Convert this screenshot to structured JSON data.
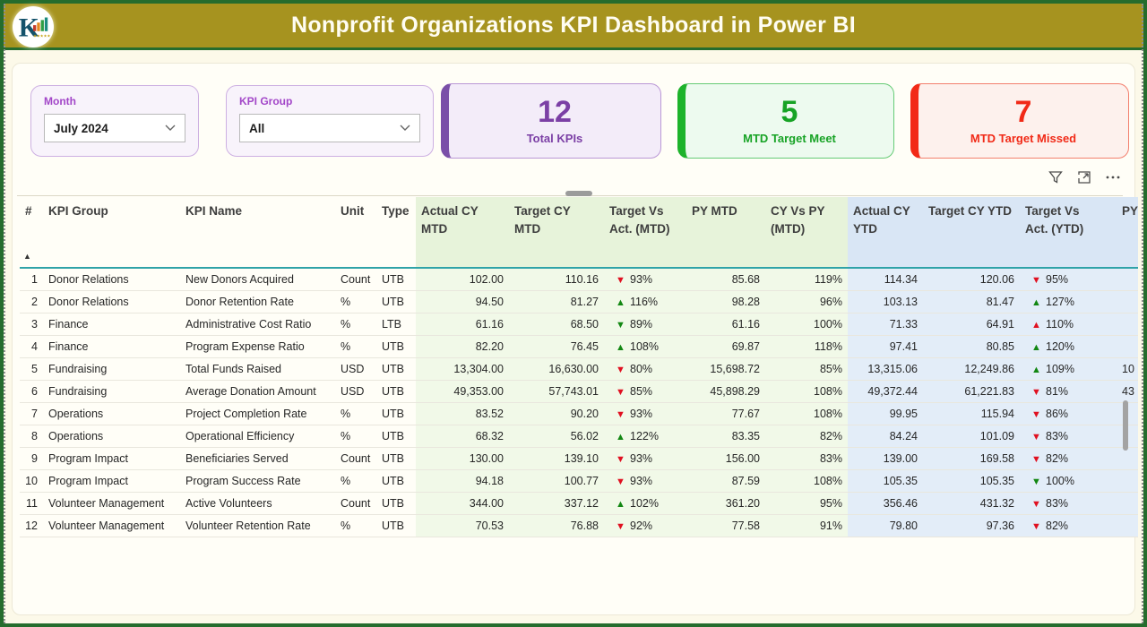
{
  "header": {
    "title": "Nonprofit Organizations KPI Dashboard in Power BI"
  },
  "filters": {
    "month": {
      "label": "Month",
      "value": "July 2024"
    },
    "kpi_group": {
      "label": "KPI Group",
      "value": "All"
    }
  },
  "cards": [
    {
      "value": "12",
      "label": "Total KPIs",
      "color": "#7B3FA5"
    },
    {
      "value": "5",
      "label": "MTD Target Meet",
      "color": "#17A325"
    },
    {
      "value": "7",
      "label": "MTD Target Missed",
      "color": "#F12A17"
    }
  ],
  "toolbar": {
    "icons": [
      "filter",
      "focus-mode",
      "more-options"
    ]
  },
  "colors": {
    "header_gold": "#A6931F",
    "frame_green": "#256C2D",
    "mtd_header_bg": "#E7F3DA",
    "mtd_body_bg": "#F1F9E8",
    "ytd_header_bg": "#D9E6F5",
    "ytd_body_bg": "#E3EDF8",
    "arrow_red": "#E01020",
    "arrow_green": "#128712",
    "header_underline_teal": "#2FA3A8"
  },
  "table": {
    "columns": [
      "#",
      "KPI Group",
      "KPI Name",
      "Unit",
      "Type",
      "Actual CY MTD",
      "Target CY MTD",
      "Target Vs Act. (MTD)",
      "PY MTD",
      "CY Vs PY (MTD)",
      "Actual CY YTD",
      "Target CY YTD",
      "Target Vs Act. (YTD)",
      "PY"
    ],
    "sort": {
      "column": "#",
      "direction": "ascending"
    },
    "rows": [
      {
        "n": "1",
        "group": "Donor Relations",
        "name": "New Donors Acquired",
        "unit": "Count",
        "type": "UTB",
        "actual_mtd": "102.00",
        "target_mtd": "110.16",
        "tva_mtd": {
          "arrow": "down",
          "color": "red",
          "value": "93%"
        },
        "py_mtd": "85.68",
        "cy_vs_py": "119%",
        "actual_ytd": "114.34",
        "target_ytd": "120.06",
        "tva_ytd": {
          "arrow": "down",
          "color": "red",
          "value": "95%"
        },
        "py_ytd": ""
      },
      {
        "n": "2",
        "group": "Donor Relations",
        "name": "Donor Retention Rate",
        "unit": "%",
        "type": "UTB",
        "actual_mtd": "94.50",
        "target_mtd": "81.27",
        "tva_mtd": {
          "arrow": "up",
          "color": "green",
          "value": "116%"
        },
        "py_mtd": "98.28",
        "cy_vs_py": "96%",
        "actual_ytd": "103.13",
        "target_ytd": "81.47",
        "tva_ytd": {
          "arrow": "up",
          "color": "green",
          "value": "127%"
        },
        "py_ytd": ""
      },
      {
        "n": "3",
        "group": "Finance",
        "name": "Administrative Cost Ratio",
        "unit": "%",
        "type": "LTB",
        "actual_mtd": "61.16",
        "target_mtd": "68.50",
        "tva_mtd": {
          "arrow": "down",
          "color": "green",
          "value": "89%"
        },
        "py_mtd": "61.16",
        "cy_vs_py": "100%",
        "actual_ytd": "71.33",
        "target_ytd": "64.91",
        "tva_ytd": {
          "arrow": "up",
          "color": "red",
          "value": "110%"
        },
        "py_ytd": ""
      },
      {
        "n": "4",
        "group": "Finance",
        "name": "Program Expense Ratio",
        "unit": "%",
        "type": "UTB",
        "actual_mtd": "82.20",
        "target_mtd": "76.45",
        "tva_mtd": {
          "arrow": "up",
          "color": "green",
          "value": "108%"
        },
        "py_mtd": "69.87",
        "cy_vs_py": "118%",
        "actual_ytd": "97.41",
        "target_ytd": "80.85",
        "tva_ytd": {
          "arrow": "up",
          "color": "green",
          "value": "120%"
        },
        "py_ytd": ""
      },
      {
        "n": "5",
        "group": "Fundraising",
        "name": "Total Funds Raised",
        "unit": "USD",
        "type": "UTB",
        "actual_mtd": "13,304.00",
        "target_mtd": "16,630.00",
        "tva_mtd": {
          "arrow": "down",
          "color": "red",
          "value": "80%"
        },
        "py_mtd": "15,698.72",
        "cy_vs_py": "85%",
        "actual_ytd": "13,315.06",
        "target_ytd": "12,249.86",
        "tva_ytd": {
          "arrow": "up",
          "color": "green",
          "value": "109%"
        },
        "py_ytd": "10"
      },
      {
        "n": "6",
        "group": "Fundraising",
        "name": "Average Donation Amount",
        "unit": "USD",
        "type": "UTB",
        "actual_mtd": "49,353.00",
        "target_mtd": "57,743.01",
        "tva_mtd": {
          "arrow": "down",
          "color": "red",
          "value": "85%"
        },
        "py_mtd": "45,898.29",
        "cy_vs_py": "108%",
        "actual_ytd": "49,372.44",
        "target_ytd": "61,221.83",
        "tva_ytd": {
          "arrow": "down",
          "color": "red",
          "value": "81%"
        },
        "py_ytd": "43"
      },
      {
        "n": "7",
        "group": "Operations",
        "name": "Project Completion Rate",
        "unit": "%",
        "type": "UTB",
        "actual_mtd": "83.52",
        "target_mtd": "90.20",
        "tva_mtd": {
          "arrow": "down",
          "color": "red",
          "value": "93%"
        },
        "py_mtd": "77.67",
        "cy_vs_py": "108%",
        "actual_ytd": "99.95",
        "target_ytd": "115.94",
        "tva_ytd": {
          "arrow": "down",
          "color": "red",
          "value": "86%"
        },
        "py_ytd": ""
      },
      {
        "n": "8",
        "group": "Operations",
        "name": "Operational Efficiency",
        "unit": "%",
        "type": "UTB",
        "actual_mtd": "68.32",
        "target_mtd": "56.02",
        "tva_mtd": {
          "arrow": "up",
          "color": "green",
          "value": "122%"
        },
        "py_mtd": "83.35",
        "cy_vs_py": "82%",
        "actual_ytd": "84.24",
        "target_ytd": "101.09",
        "tva_ytd": {
          "arrow": "down",
          "color": "red",
          "value": "83%"
        },
        "py_ytd": ""
      },
      {
        "n": "9",
        "group": "Program Impact",
        "name": "Beneficiaries Served",
        "unit": "Count",
        "type": "UTB",
        "actual_mtd": "130.00",
        "target_mtd": "139.10",
        "tva_mtd": {
          "arrow": "down",
          "color": "red",
          "value": "93%"
        },
        "py_mtd": "156.00",
        "cy_vs_py": "83%",
        "actual_ytd": "139.00",
        "target_ytd": "169.58",
        "tva_ytd": {
          "arrow": "down",
          "color": "red",
          "value": "82%"
        },
        "py_ytd": ""
      },
      {
        "n": "10",
        "group": "Program Impact",
        "name": "Program Success Rate",
        "unit": "%",
        "type": "UTB",
        "actual_mtd": "94.18",
        "target_mtd": "100.77",
        "tva_mtd": {
          "arrow": "down",
          "color": "red",
          "value": "93%"
        },
        "py_mtd": "87.59",
        "cy_vs_py": "108%",
        "actual_ytd": "105.35",
        "target_ytd": "105.35",
        "tva_ytd": {
          "arrow": "down",
          "color": "green",
          "value": "100%"
        },
        "py_ytd": ""
      },
      {
        "n": "11",
        "group": "Volunteer Management",
        "name": "Active Volunteers",
        "unit": "Count",
        "type": "UTB",
        "actual_mtd": "344.00",
        "target_mtd": "337.12",
        "tva_mtd": {
          "arrow": "up",
          "color": "green",
          "value": "102%"
        },
        "py_mtd": "361.20",
        "cy_vs_py": "95%",
        "actual_ytd": "356.46",
        "target_ytd": "431.32",
        "tva_ytd": {
          "arrow": "down",
          "color": "red",
          "value": "83%"
        },
        "py_ytd": ""
      },
      {
        "n": "12",
        "group": "Volunteer Management",
        "name": "Volunteer Retention Rate",
        "unit": "%",
        "type": "UTB",
        "actual_mtd": "70.53",
        "target_mtd": "76.88",
        "tva_mtd": {
          "arrow": "down",
          "color": "red",
          "value": "92%"
        },
        "py_mtd": "77.58",
        "cy_vs_py": "91%",
        "actual_ytd": "79.80",
        "target_ytd": "97.36",
        "tva_ytd": {
          "arrow": "down",
          "color": "red",
          "value": "82%"
        },
        "py_ytd": ""
      }
    ]
  }
}
